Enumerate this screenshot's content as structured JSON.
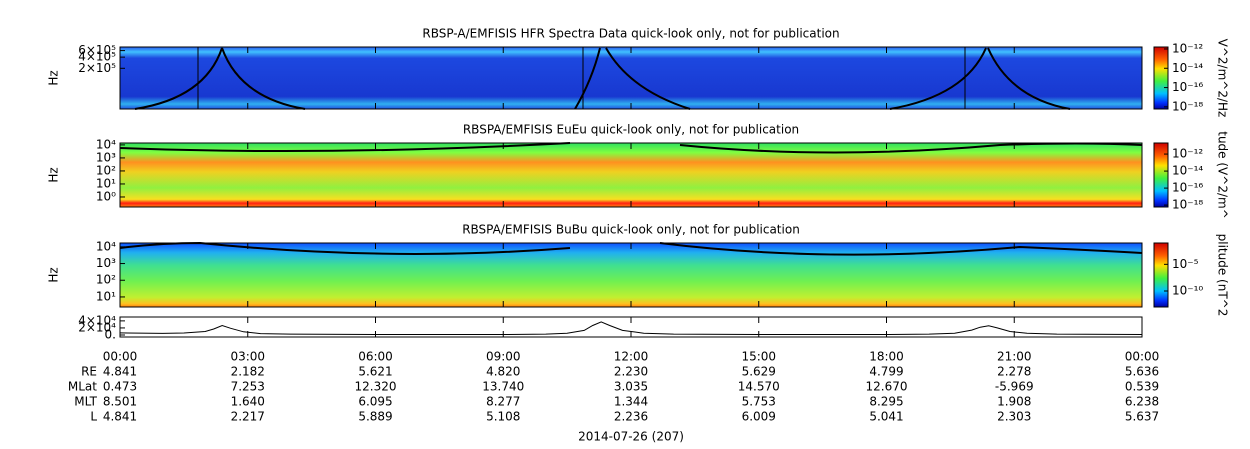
{
  "chart_data": [
    {
      "type": "spectrogram",
      "title": "RBSP-A/EMFISIS  HFR Spectra Data quick-look only, not for publication",
      "ylabel": "Hz",
      "log_y": true,
      "ylim": [
        16000,
        750000
      ],
      "yticks": [
        {
          "value": 600000,
          "label": "6×10⁵"
        },
        {
          "value": 400000,
          "label": "4×10⁵"
        },
        {
          "value": 200000,
          "label": "2×10⁵"
        }
      ],
      "zlabel": "V^2/m^2/Hz",
      "log_z": true,
      "zlim": [
        6e-19,
        1.6e-12
      ],
      "zticks": [
        {
          "value": 1e-12,
          "label": "10⁻¹²"
        },
        {
          "value": 1e-14,
          "label": "10⁻¹⁴"
        },
        {
          "value": 1e-16,
          "label": "10⁻¹⁶"
        },
        {
          "value": 1e-18,
          "label": "10⁻¹⁸"
        }
      ]
    },
    {
      "type": "spectrogram",
      "title": "RBSPA/EMFISIS  EuEu quick-look only, not for publication",
      "ylabel": "Hz",
      "log_y": true,
      "ylim": [
        0.17,
        14000
      ],
      "yticks": [
        {
          "value": 10000,
          "label": "10⁴"
        },
        {
          "value": 1000,
          "label": "10³"
        },
        {
          "value": 100,
          "label": "10²"
        },
        {
          "value": 10,
          "label": "10¹"
        },
        {
          "value": 1,
          "label": "10⁰"
        }
      ],
      "zlabel": "tude (V^2/m^",
      "log_z": true,
      "zlim": [
        6e-19,
        2e-11
      ],
      "zticks": [
        {
          "value": 1e-12,
          "label": "10⁻¹²"
        },
        {
          "value": 1e-14,
          "label": "10⁻¹⁴"
        },
        {
          "value": 1e-16,
          "label": "10⁻¹⁶"
        },
        {
          "value": 1e-18,
          "label": "10⁻¹⁸"
        }
      ]
    },
    {
      "type": "spectrogram",
      "title": "RBSPA/EMFISIS  BuBu quick-look only, not for publication",
      "ylabel": "Hz",
      "log_y": true,
      "ylim": [
        2.5,
        17000
      ],
      "yticks": [
        {
          "value": 10000,
          "label": "10⁴"
        },
        {
          "value": 1000,
          "label": "10³"
        },
        {
          "value": 100,
          "label": "10²"
        },
        {
          "value": 10,
          "label": "10¹"
        }
      ],
      "zlabel": "plitude (nT^2",
      "log_z": true,
      "zlim": [
        1e-13,
        0.1
      ],
      "zticks": [
        {
          "value": 1e-05,
          "label": "10⁻⁵"
        },
        {
          "value": 1e-10,
          "label": "10⁻¹⁰"
        }
      ]
    },
    {
      "type": "line",
      "color": "#000000",
      "xlim": [
        0,
        24
      ],
      "xticks": [
        {
          "value": 0,
          "label": "00:00"
        },
        {
          "value": 3,
          "label": "03:00"
        },
        {
          "value": 6,
          "label": "06:00"
        },
        {
          "value": 9,
          "label": "09:00"
        },
        {
          "value": 12,
          "label": "12:00"
        },
        {
          "value": 15,
          "label": "15:00"
        },
        {
          "value": 18,
          "label": "18:00"
        },
        {
          "value": 21,
          "label": "21:00"
        },
        {
          "value": 24,
          "label": "00:00"
        }
      ],
      "ylim": [
        -5700,
        51000
      ],
      "yticks": [
        {
          "value": 40000,
          "label": "4×10⁴"
        },
        {
          "value": 20000,
          "label": "2×10⁴"
        },
        {
          "value": 0,
          "label": "0."
        }
      ],
      "x": [
        0,
        1,
        1.5,
        2,
        2.2,
        2.4,
        2.6,
        2.9,
        3.3,
        4,
        6,
        9,
        10,
        10.5,
        10.9,
        11.1,
        11.3,
        11.5,
        11.8,
        12.3,
        13,
        15,
        18,
        19,
        19.6,
        20,
        20.2,
        20.4,
        20.6,
        20.9,
        21.3,
        22,
        24
      ],
      "values": [
        6000,
        4500,
        5500,
        10000,
        17000,
        27000,
        19000,
        9000,
        4000,
        2500,
        1500,
        1500,
        2500,
        5000,
        13000,
        27000,
        37000,
        27000,
        13000,
        5000,
        2500,
        1500,
        1500,
        2500,
        5000,
        14000,
        22000,
        26000,
        20000,
        10000,
        5000,
        2500,
        1500
      ]
    }
  ],
  "ephemeris": {
    "rows": [
      {
        "label": "RE",
        "values": [
          "4.841",
          "2.182",
          "5.621",
          "4.820",
          "2.230",
          "5.629",
          "4.799",
          "2.278",
          "5.636"
        ]
      },
      {
        "label": "MLat",
        "values": [
          "0.473",
          "7.253",
          "12.320",
          "13.740",
          "3.035",
          "14.570",
          "12.670",
          "-5.969",
          "0.539"
        ]
      },
      {
        "label": "MLT",
        "values": [
          "8.501",
          "1.640",
          "6.095",
          "8.277",
          "1.344",
          "5.753",
          "8.295",
          "1.908",
          "6.238"
        ]
      },
      {
        "label": "L",
        "values": [
          "4.841",
          "2.217",
          "5.889",
          "5.108",
          "2.236",
          "6.009",
          "5.041",
          "2.303",
          "5.637"
        ]
      }
    ],
    "date": "2014-07-26 (207)"
  }
}
